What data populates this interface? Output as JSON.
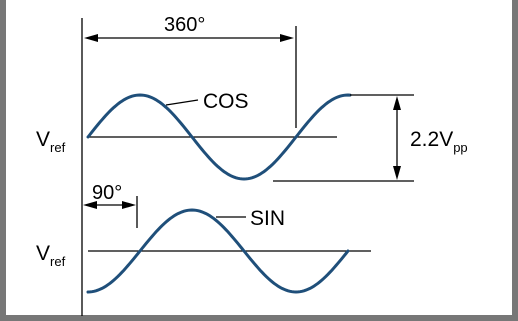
{
  "colors": {
    "wave": "#1f4f7a",
    "line": "#000000",
    "frame": "#777777",
    "background": "#ffffff"
  },
  "labels": {
    "period": "360°",
    "cos": "COS",
    "sin": "SIN",
    "phase": "90°",
    "vref_main": "V",
    "vref_sub": "ref",
    "amplitude_main": "2.2V",
    "amplitude_sub": "pp"
  },
  "waveforms": [
    {
      "name": "cos",
      "label_key": "cos"
    },
    {
      "name": "sin",
      "label_key": "sin"
    }
  ]
}
